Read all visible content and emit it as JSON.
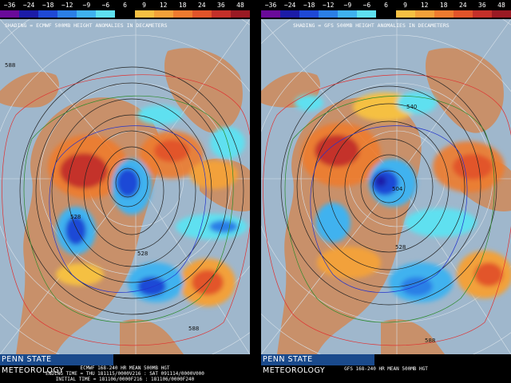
{
  "colorbar": {
    "labels": [
      "−36",
      "−24",
      "−18",
      "−12",
      "−9",
      "−6",
      "6",
      "9",
      "12",
      "18",
      "24",
      "36",
      "48"
    ],
    "colors": [
      "#6a0a9a",
      "#1c1ca8",
      "#1f49d6",
      "#2b7fe6",
      "#3fb2ef",
      "#5ee0f0",
      "#000000",
      "#f5c043",
      "#f2a13a",
      "#ee7b2f",
      "#e2542a",
      "#c4302a",
      "#9a1a24"
    ]
  },
  "left": {
    "shading_title": "SHADING = ECMWF 500MB HEIGHT ANOMALIES IN DECAMETERS",
    "brand": "PENN STATE METEOROLOGY",
    "info_lines": [
      "ECMWF 168-240 HR MEAN 500MB HGT",
      "ENDING TIME = THU 181115/0000V216 : SAT 091114/0000V000",
      "INITIAL TIME = 181106/0000F216 : 181106/0000F240"
    ],
    "contour_labels": [
      "588",
      "528",
      "528",
      "588"
    ]
  },
  "right": {
    "shading_title": "SHADING = GFS 500MB HEIGHT ANOMALIES IN DECAMETERS",
    "brand": "PENN STATE METEOROLOGY",
    "info_lines": [
      "GFS 168-240 HR MEAN 500MB HGT"
    ],
    "contour_labels": [
      "540",
      "504",
      "528",
      "588"
    ]
  },
  "map_colors": {
    "ocean": "#9fb7cc",
    "land": "#c8906a",
    "grid": "#d8e2ea"
  }
}
